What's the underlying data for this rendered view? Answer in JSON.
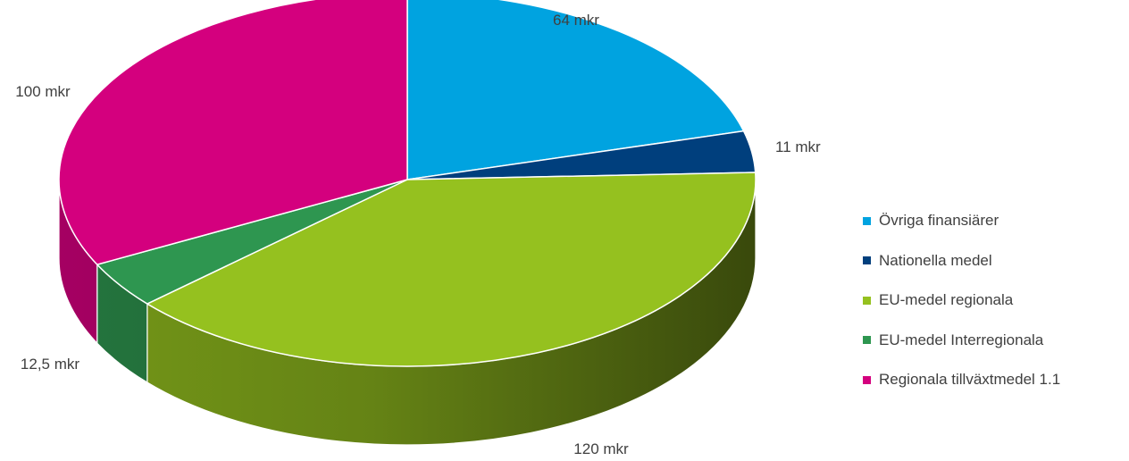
{
  "chart_data": {
    "type": "pie",
    "title": "",
    "unit": "mkr",
    "series": [
      {
        "name": "Övriga finansiärer",
        "value": 64,
        "label": "64 mkr",
        "color": "#00a3e0"
      },
      {
        "name": "Nationella medel",
        "value": 11,
        "label": "11 mkr",
        "color": "#003f7d"
      },
      {
        "name": "EU-medel regionala",
        "value": 120,
        "label": "120 mkr",
        "color": "#95c11f"
      },
      {
        "name": "EU-medel Interregionala",
        "value": 12.5,
        "label": "12,5 mkr",
        "color": "#2e9650"
      },
      {
        "name": "Regionala tillväxtmedel 1.1",
        "value": 100,
        "label": "100 mkr",
        "color": "#d4007e"
      }
    ],
    "legend_position": "right",
    "style": "3d"
  }
}
